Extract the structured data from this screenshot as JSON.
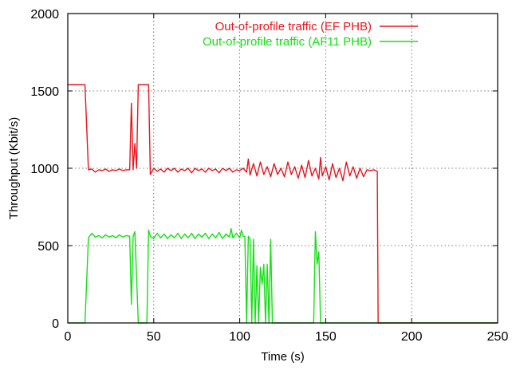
{
  "chart_data": {
    "type": "line",
    "title": "",
    "xlabel": "Time (s)",
    "ylabel": "Throughput (Kbit/s)",
    "xlim": [
      0,
      250
    ],
    "ylim": [
      0,
      2000
    ],
    "xticks": [
      0,
      50,
      100,
      150,
      200,
      250
    ],
    "yticks": [
      0,
      500,
      1000,
      1500,
      2000
    ],
    "grid": true,
    "legend_position": "top-right",
    "series": [
      {
        "name": "Out-of-profile traffic (EF PHB)",
        "color": "#e8141e",
        "points": [
          [
            0,
            1540
          ],
          [
            10,
            1540
          ],
          [
            12,
            990
          ],
          [
            14,
            995
          ],
          [
            16,
            975
          ],
          [
            18,
            990
          ],
          [
            20,
            985
          ],
          [
            22,
            995
          ],
          [
            24,
            980
          ],
          [
            26,
            990
          ],
          [
            28,
            985
          ],
          [
            30,
            995
          ],
          [
            32,
            985
          ],
          [
            34,
            990
          ],
          [
            36,
            990
          ],
          [
            37,
            1420
          ],
          [
            38,
            990
          ],
          [
            39,
            1160
          ],
          [
            40,
            1000
          ],
          [
            41,
            1540
          ],
          [
            46,
            1540
          ],
          [
            47,
            1540
          ],
          [
            48,
            960
          ],
          [
            50,
            1000
          ],
          [
            52,
            980
          ],
          [
            54,
            995
          ],
          [
            56,
            975
          ],
          [
            58,
            1000
          ],
          [
            60,
            985
          ],
          [
            62,
            1000
          ],
          [
            64,
            975
          ],
          [
            66,
            995
          ],
          [
            68,
            985
          ],
          [
            70,
            1000
          ],
          [
            72,
            970
          ],
          [
            74,
            1000
          ],
          [
            76,
            985
          ],
          [
            78,
            995
          ],
          [
            80,
            975
          ],
          [
            82,
            1000
          ],
          [
            84,
            985
          ],
          [
            86,
            995
          ],
          [
            88,
            970
          ],
          [
            90,
            1000
          ],
          [
            92,
            985
          ],
          [
            94,
            1000
          ],
          [
            96,
            975
          ],
          [
            98,
            990
          ],
          [
            100,
            985
          ],
          [
            102,
            1000
          ],
          [
            104,
            975
          ],
          [
            105,
            1060
          ],
          [
            106,
            955
          ],
          [
            108,
            1030
          ],
          [
            110,
            950
          ],
          [
            112,
            1040
          ],
          [
            114,
            960
          ],
          [
            116,
            1010
          ],
          [
            118,
            945
          ],
          [
            120,
            1030
          ],
          [
            122,
            960
          ],
          [
            124,
            1000
          ],
          [
            126,
            945
          ],
          [
            128,
            1040
          ],
          [
            130,
            960
          ],
          [
            132,
            1010
          ],
          [
            134,
            935
          ],
          [
            136,
            1020
          ],
          [
            138,
            940
          ],
          [
            140,
            1050
          ],
          [
            142,
            950
          ],
          [
            144,
            1000
          ],
          [
            146,
            930
          ],
          [
            147,
            1070
          ],
          [
            148,
            950
          ],
          [
            150,
            1010
          ],
          [
            152,
            925
          ],
          [
            154,
            1030
          ],
          [
            156,
            940
          ],
          [
            158,
            1000
          ],
          [
            160,
            920
          ],
          [
            162,
            1040
          ],
          [
            164,
            950
          ],
          [
            166,
            1010
          ],
          [
            168,
            935
          ],
          [
            170,
            1000
          ],
          [
            172,
            945
          ],
          [
            174,
            990
          ],
          [
            176,
            985
          ],
          [
            178,
            990
          ],
          [
            180,
            980
          ],
          [
            180.5,
            0
          ],
          [
            250,
            0
          ]
        ]
      },
      {
        "name": "Out-of-profile traffic (AF11 PHB)",
        "color": "#14e014",
        "points": [
          [
            0,
            0
          ],
          [
            10,
            0
          ],
          [
            12,
            550
          ],
          [
            14,
            580
          ],
          [
            16,
            555
          ],
          [
            18,
            565
          ],
          [
            20,
            550
          ],
          [
            22,
            570
          ],
          [
            24,
            555
          ],
          [
            26,
            565
          ],
          [
            28,
            550
          ],
          [
            30,
            570
          ],
          [
            32,
            555
          ],
          [
            34,
            565
          ],
          [
            36,
            560
          ],
          [
            37,
            120
          ],
          [
            38,
            560
          ],
          [
            39,
            590
          ],
          [
            40,
            300
          ],
          [
            41,
            0
          ],
          [
            46,
            0
          ],
          [
            47,
            600
          ],
          [
            48,
            560
          ],
          [
            50,
            545
          ],
          [
            52,
            580
          ],
          [
            54,
            550
          ],
          [
            56,
            575
          ],
          [
            58,
            545
          ],
          [
            60,
            570
          ],
          [
            62,
            550
          ],
          [
            64,
            580
          ],
          [
            66,
            545
          ],
          [
            68,
            575
          ],
          [
            70,
            550
          ],
          [
            72,
            580
          ],
          [
            74,
            545
          ],
          [
            76,
            575
          ],
          [
            78,
            555
          ],
          [
            80,
            580
          ],
          [
            82,
            545
          ],
          [
            84,
            575
          ],
          [
            86,
            550
          ],
          [
            88,
            585
          ],
          [
            90,
            545
          ],
          [
            92,
            575
          ],
          [
            94,
            555
          ],
          [
            95,
            610
          ],
          [
            96,
            550
          ],
          [
            98,
            580
          ],
          [
            100,
            550
          ],
          [
            101,
            600
          ],
          [
            102,
            560
          ],
          [
            103,
            560
          ],
          [
            104,
            0
          ],
          [
            105,
            560
          ],
          [
            106,
            540
          ],
          [
            107,
            0
          ],
          [
            108,
            540
          ],
          [
            109,
            0
          ],
          [
            110,
            370
          ],
          [
            111,
            0
          ],
          [
            112,
            360
          ],
          [
            113,
            250
          ],
          [
            114,
            380
          ],
          [
            115,
            0
          ],
          [
            116,
            380
          ],
          [
            117,
            0
          ],
          [
            118,
            540
          ],
          [
            119,
            0
          ],
          [
            143,
            0
          ],
          [
            144,
            590
          ],
          [
            145,
            380
          ],
          [
            146,
            460
          ],
          [
            147,
            0
          ],
          [
            250,
            0
          ]
        ]
      }
    ]
  }
}
